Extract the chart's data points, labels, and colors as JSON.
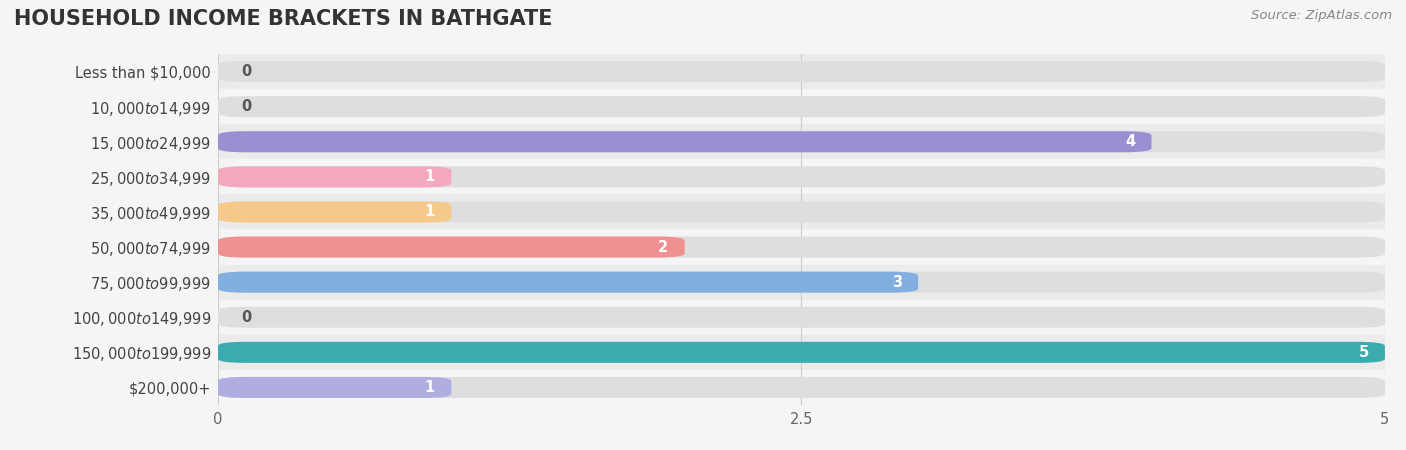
{
  "title": "HOUSEHOLD INCOME BRACKETS IN BATHGATE",
  "source": "Source: ZipAtlas.com",
  "categories": [
    "Less than $10,000",
    "$10,000 to $14,999",
    "$15,000 to $24,999",
    "$25,000 to $34,999",
    "$35,000 to $49,999",
    "$50,000 to $74,999",
    "$75,000 to $99,999",
    "$100,000 to $149,999",
    "$150,000 to $199,999",
    "$200,000+"
  ],
  "values": [
    0,
    0,
    4,
    1,
    1,
    2,
    3,
    0,
    5,
    1
  ],
  "bar_colors": [
    "#c9aed6",
    "#7ecec4",
    "#9b8fd4",
    "#f4a8be",
    "#f5c98a",
    "#f09090",
    "#82aee0",
    "#d4a8d8",
    "#3aacb0",
    "#b0aee0"
  ],
  "xlim": [
    0,
    5
  ],
  "xticks": [
    0,
    2.5,
    5
  ],
  "background_color": "#f5f5f5",
  "row_colors": [
    "#ebebeb",
    "#f5f5f5"
  ],
  "bar_bg_color": "#dedede",
  "grid_color": "#cccccc",
  "title_fontsize": 15,
  "label_fontsize": 10.5,
  "value_fontsize": 10.5,
  "source_fontsize": 9.5,
  "bar_height": 0.6,
  "value_threshold": 0.8
}
